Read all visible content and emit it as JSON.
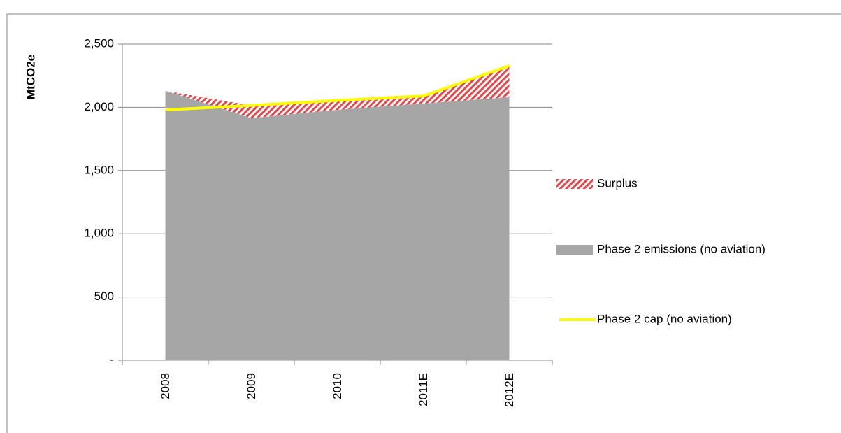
{
  "chart_data": {
    "type": "stacked_area_line",
    "y_label": "MtCO2e",
    "categories": [
      "2008",
      "2009",
      "2010",
      "2011E",
      "2012E"
    ],
    "series": [
      {
        "name": "Surplus",
        "color": "#e8474c",
        "kind": "area",
        "stack": true,
        "pattern": "hatch",
        "values": [
          0,
          100,
          75,
          60,
          250
        ]
      },
      {
        "name": "Phase 2 emissions (no aviation)",
        "color": "#a6a6a6",
        "kind": "area",
        "stack": true,
        "values": [
          2130,
          1915,
          1980,
          2030,
          2080
        ]
      },
      {
        "name": "Phase 2 cap (no aviation)",
        "color": "#ffff00",
        "kind": "line",
        "values": [
          1980,
          2015,
          2055,
          2090,
          2330
        ]
      }
    ],
    "ylim": [
      0,
      2500
    ],
    "yticks": [
      {
        "value": 0,
        "label": "-"
      },
      500,
      {
        "value": 1000,
        "label": "1,000"
      },
      {
        "value": 1500,
        "label": "1,500"
      },
      {
        "value": 2000,
        "label": "2,000"
      },
      {
        "value": 2500,
        "label": "2,500"
      }
    ],
    "grid": true,
    "legend": "right"
  }
}
